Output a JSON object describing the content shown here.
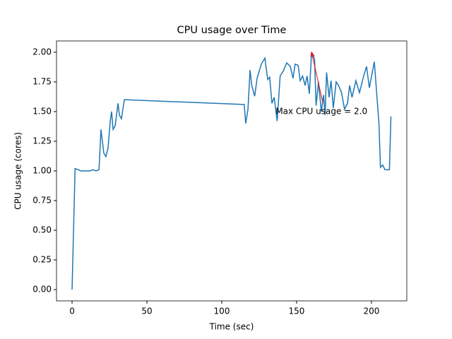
{
  "chart_data": {
    "type": "line",
    "title": "CPU usage over Time",
    "x_label": "Time (sec)",
    "y_label": "CPU usage (cores)",
    "color": "#1f77b4",
    "x": [
      0,
      2,
      4,
      6,
      8,
      10,
      12,
      14,
      16,
      18,
      19.3,
      21.2,
      22.6,
      24,
      25.5,
      26.4,
      27.4,
      28.8,
      30.7,
      31.6,
      33,
      34.9,
      114.2,
      115,
      116,
      117.5,
      118.9,
      120,
      122,
      123.6,
      126.4,
      128.8,
      130.7,
      132,
      133.5,
      135,
      137,
      139,
      141,
      143.4,
      145.8,
      147.6,
      149,
      151,
      152.4,
      154,
      155.7,
      157,
      158.5,
      160,
      162,
      163,
      164.6,
      166.5,
      168,
      169,
      170,
      171.7,
      173,
      174.5,
      176.4,
      178,
      180,
      182,
      184,
      185.4,
      187,
      189.6,
      192,
      194.8,
      196.7,
      198.6,
      201.9,
      203.8,
      205,
      206,
      207.5,
      209,
      211,
      212,
      213
    ],
    "values": [
      0,
      1.02,
      1.01,
      1.0,
      1.0,
      1.0,
      1.0,
      1.01,
      1.0,
      1.01,
      1.35,
      1.15,
      1.12,
      1.19,
      1.42,
      1.5,
      1.35,
      1.38,
      1.57,
      1.47,
      1.44,
      1.6,
      1.56,
      1.56,
      1.4,
      1.52,
      1.85,
      1.72,
      1.63,
      1.78,
      1.9,
      1.95,
      1.77,
      1.79,
      1.57,
      1.62,
      1.42,
      1.8,
      1.84,
      1.91,
      1.88,
      1.78,
      1.9,
      1.89,
      1.76,
      1.8,
      1.72,
      1.8,
      1.65,
      2.0,
      1.94,
      1.55,
      1.75,
      1.5,
      1.64,
      1.47,
      1.83,
      1.62,
      1.76,
      1.53,
      1.75,
      1.72,
      1.66,
      1.52,
      1.57,
      1.72,
      1.62,
      1.76,
      1.66,
      1.8,
      1.88,
      1.7,
      1.92,
      1.6,
      1.4,
      1.03,
      1.05,
      1.01,
      1.01,
      1.01,
      1.46
    ],
    "xlim": [
      -10.4,
      223.6
    ],
    "ylim": [
      -0.095,
      2.095
    ],
    "xticks": [
      0,
      50,
      100,
      150,
      200
    ],
    "yticks": [
      {
        "value": 0,
        "label": "0.00"
      },
      {
        "value": 0.25,
        "label": "0.25"
      },
      {
        "value": 0.5,
        "label": "0.50"
      },
      {
        "value": 0.75,
        "label": "0.75"
      },
      {
        "value": 1,
        "label": "1.00"
      },
      {
        "value": 1.25,
        "label": "1.25"
      },
      {
        "value": 1.5,
        "label": "1.50"
      },
      {
        "value": 1.75,
        "label": "1.75"
      },
      {
        "value": 2,
        "label": "2.00"
      }
    ],
    "annotation": {
      "text": "Max CPU usage = 2.0",
      "color": "#ff0000",
      "xy": [
        160,
        2.0
      ],
      "xytext": [
        136,
        1.5
      ]
    }
  }
}
